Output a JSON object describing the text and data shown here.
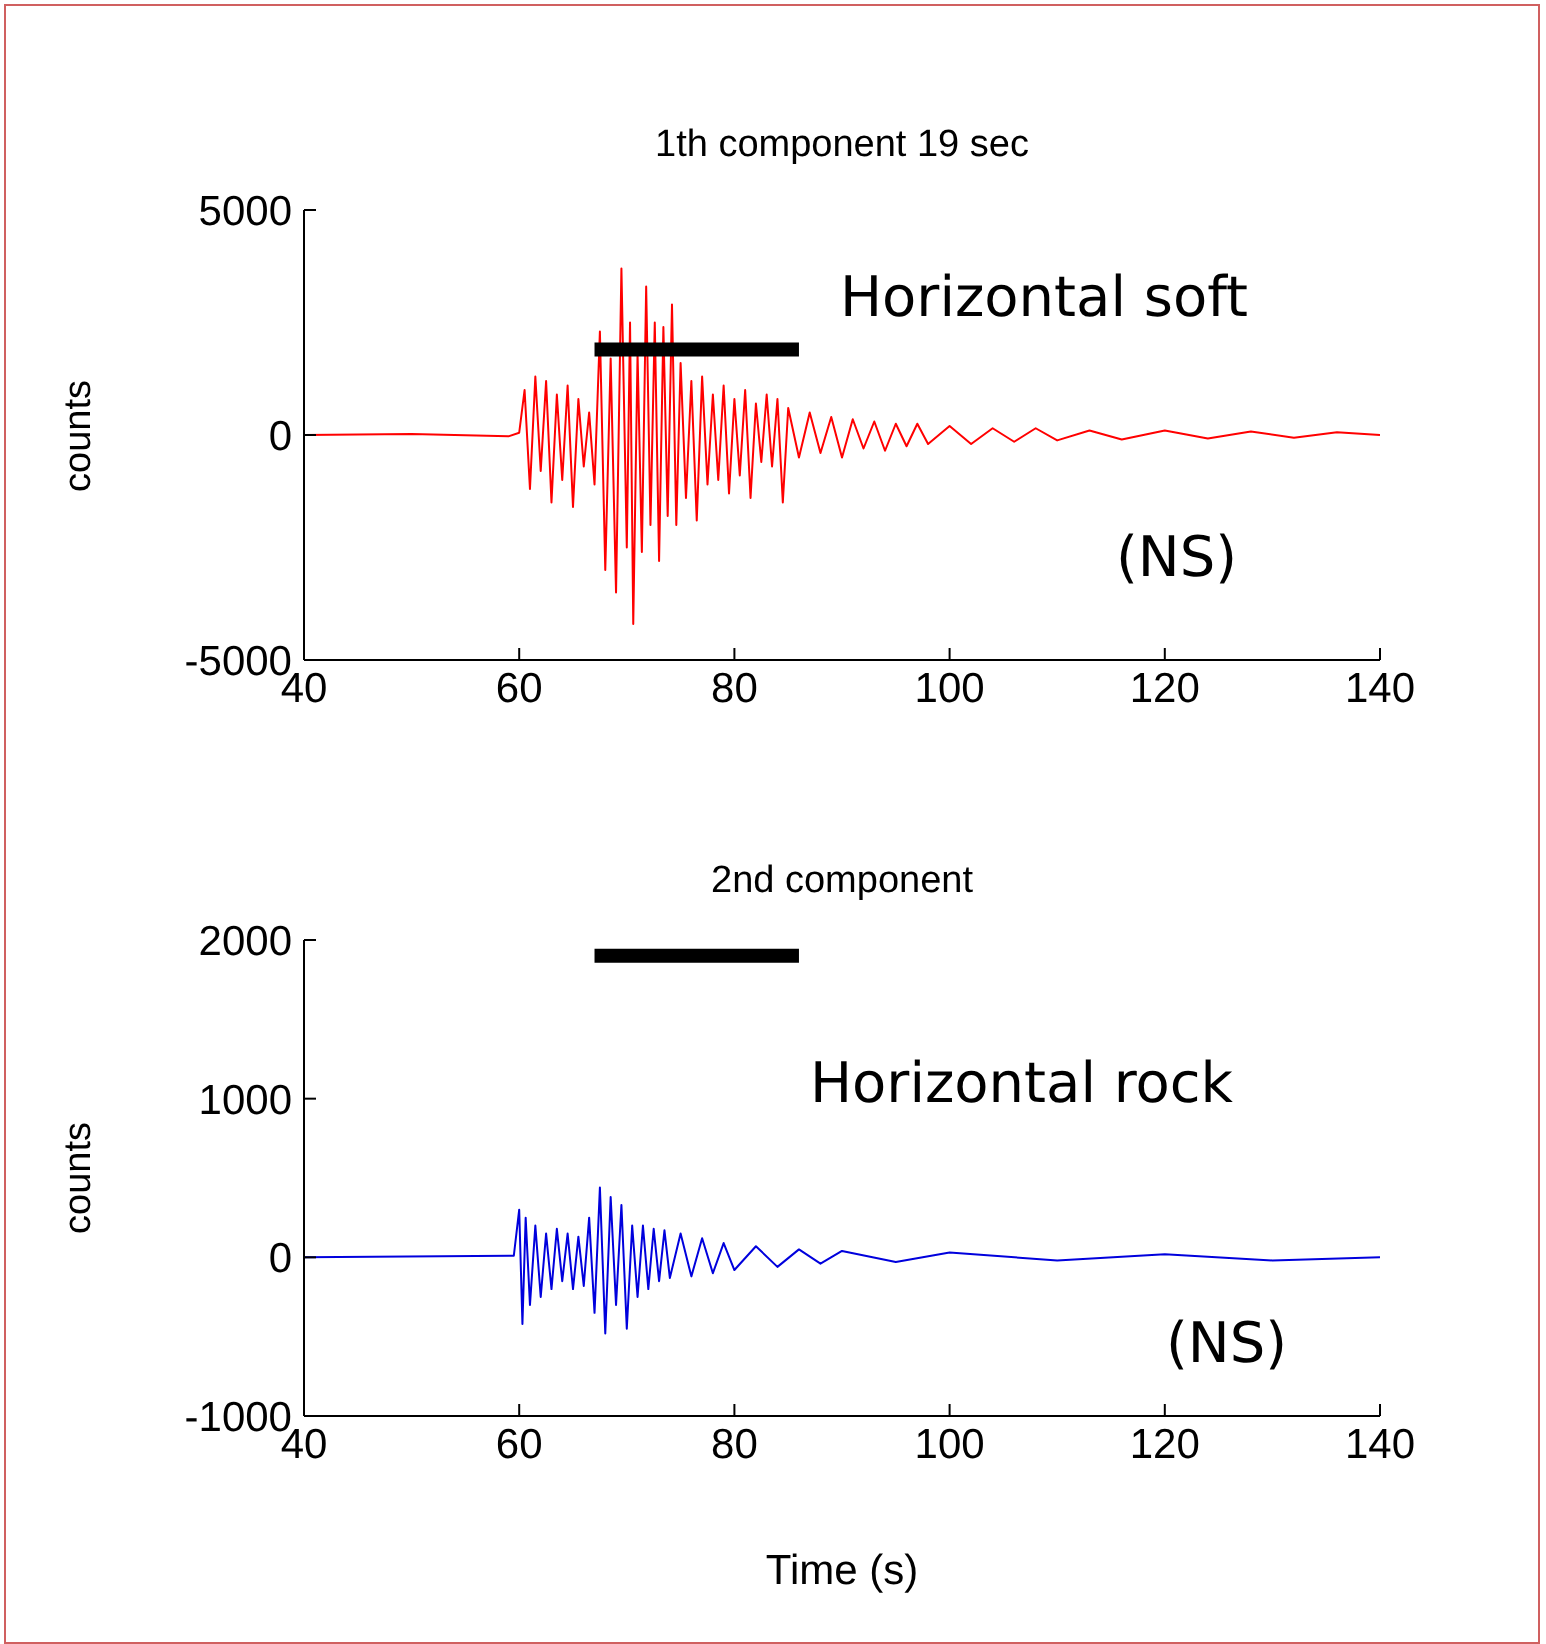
{
  "chart_data": [
    {
      "type": "line",
      "title": "1th component 19 sec",
      "ylabel": "counts",
      "xlim": [
        40,
        140
      ],
      "xticks": [
        40,
        60,
        80,
        100,
        120,
        140
      ],
      "ylim": [
        -5000,
        5000
      ],
      "yticks": [
        -5000,
        0,
        5000
      ],
      "marker": "none",
      "annotations": [
        "Horizontal soft",
        "(NS)"
      ],
      "series": [
        {
          "color": "#ff0000",
          "x": [
            40,
            50,
            59,
            60,
            60.5,
            61,
            61.5,
            62,
            62.5,
            63,
            63.5,
            64,
            64.5,
            65,
            65.5,
            66,
            66.5,
            67,
            67.5,
            68,
            68.5,
            69,
            69.5,
            70,
            70.3,
            70.6,
            71,
            71.4,
            71.8,
            72.2,
            72.6,
            73,
            73.4,
            73.8,
            74.2,
            74.6,
            75,
            75.5,
            76,
            76.5,
            77,
            77.5,
            78,
            78.5,
            79,
            79.5,
            80,
            80.5,
            81,
            81.5,
            82,
            82.5,
            83,
            83.5,
            84,
            84.5,
            85,
            86,
            87,
            88,
            89,
            90,
            91,
            92,
            93,
            94,
            95,
            96,
            97,
            98,
            100,
            102,
            104,
            106,
            108,
            110,
            113,
            116,
            120,
            124,
            128,
            132,
            136,
            140
          ],
          "values": [
            0,
            20,
            -30,
            50,
            1000,
            -1200,
            1300,
            -800,
            1200,
            -1500,
            900,
            -1000,
            1100,
            -1600,
            800,
            -700,
            500,
            -1100,
            2300,
            -3000,
            1700,
            -3500,
            3700,
            -2500,
            2500,
            -4200,
            1800,
            -2600,
            3300,
            -2000,
            2500,
            -2800,
            2400,
            -1800,
            2900,
            -2000,
            1600,
            -1400,
            1200,
            -1900,
            1300,
            -1100,
            900,
            -1000,
            1100,
            -1300,
            800,
            -900,
            1000,
            -1400,
            700,
            -600,
            900,
            -700,
            800,
            -1500,
            600,
            -500,
            500,
            -400,
            400,
            -500,
            350,
            -300,
            300,
            -350,
            250,
            -250,
            250,
            -200,
            200,
            -200,
            150,
            -150,
            150,
            -120,
            100,
            -100,
            100,
            -80,
            80,
            -60,
            60,
            0
          ]
        },
        {
          "color": "#000000",
          "x": [
            67,
            86
          ],
          "values": [
            1900,
            1900
          ]
        }
      ]
    },
    {
      "type": "line",
      "title": "2nd component",
      "xlabel": "Time (s)",
      "ylabel": "counts",
      "xlim": [
        40,
        140
      ],
      "xticks": [
        40,
        60,
        80,
        100,
        120,
        140
      ],
      "ylim": [
        -1000,
        2000
      ],
      "yticks": [
        -1000,
        0,
        1000,
        2000
      ],
      "marker": "none",
      "annotations": [
        "Horizontal rock",
        "(NS)"
      ],
      "series": [
        {
          "color": "#0000dd",
          "x": [
            40,
            59.5,
            60,
            60.3,
            60.6,
            61,
            61.5,
            62,
            62.5,
            63,
            63.5,
            64,
            64.5,
            65,
            65.5,
            66,
            66.5,
            67,
            67.5,
            68,
            68.5,
            69,
            69.5,
            70,
            70.5,
            71,
            71.5,
            72,
            72.5,
            73,
            73.5,
            74,
            75,
            76,
            77,
            78,
            79,
            80,
            82,
            84,
            86,
            88,
            90,
            95,
            100,
            110,
            120,
            130,
            140
          ],
          "values": [
            0,
            10,
            300,
            -420,
            250,
            -300,
            200,
            -250,
            150,
            -200,
            180,
            -150,
            150,
            -200,
            130,
            -180,
            250,
            -350,
            440,
            -480,
            380,
            -300,
            330,
            -450,
            200,
            -250,
            200,
            -200,
            180,
            -150,
            170,
            -130,
            150,
            -120,
            120,
            -100,
            90,
            -80,
            70,
            -60,
            50,
            -40,
            40,
            -30,
            30,
            -20,
            20,
            -20,
            0
          ]
        },
        {
          "color": "#000000",
          "x": [
            67,
            86
          ],
          "values": [
            1900,
            1900
          ]
        }
      ]
    }
  ]
}
